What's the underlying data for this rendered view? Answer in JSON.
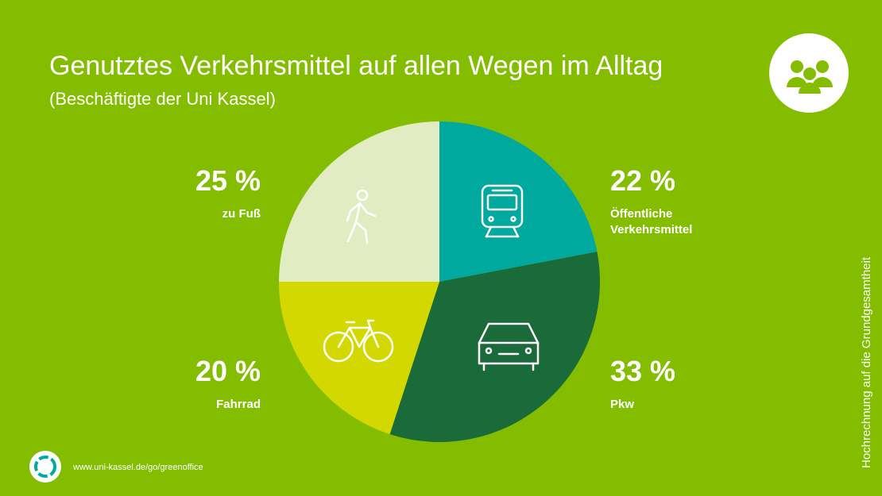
{
  "chart_data": {
    "type": "pie",
    "title": "Genutztes Verkehrsmittel auf allen Wegen im Alltag",
    "subtitle": "(Beschäftigte der Uni Kassel)",
    "categories": [
      "Öffentliche Verkehrsmittel",
      "Pkw",
      "Fahrrad",
      "zu Fuß"
    ],
    "values": [
      22,
      33,
      20,
      25
    ],
    "value_labels": [
      "22 %",
      "33 %",
      "20 %",
      "25 %"
    ],
    "colors": [
      "#00a99d",
      "#1b6b3a",
      "#d3d900",
      "#e1ecc3"
    ],
    "source": "www.uni-kassel.de/go/greenoffice",
    "note": "Hochrechnung auf die Grundgesamtheit"
  }
}
